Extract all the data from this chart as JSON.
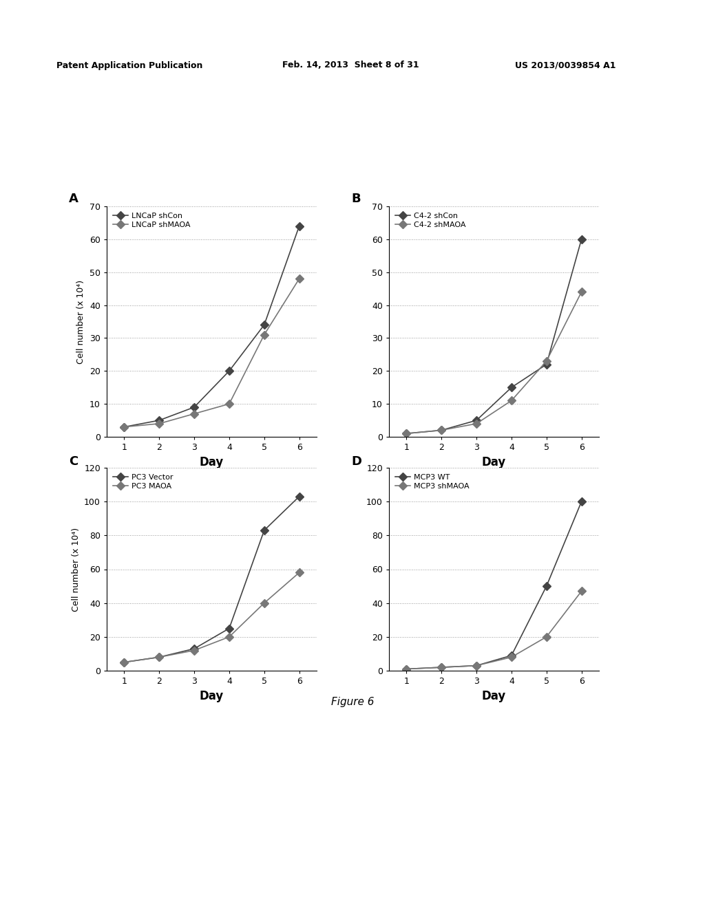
{
  "figure_title": "Figure 6",
  "header_line1": "Patent Application Publication",
  "header_line2": "Feb. 14, 2013  Sheet 8 of 31",
  "header_line3": "US 2013/0039854 A1",
  "subplots": [
    {
      "label": "A",
      "series": [
        {
          "name": "LNCaP shCon",
          "x": [
            1,
            2,
            3,
            4,
            5,
            6
          ],
          "y": [
            3,
            5,
            9,
            20,
            34,
            64
          ]
        },
        {
          "name": "LNCaP shMAOA",
          "x": [
            1,
            2,
            3,
            4,
            5,
            6
          ],
          "y": [
            3,
            4,
            7,
            10,
            31,
            48
          ]
        }
      ],
      "ylabel": "Cell number (x 10⁴)",
      "xlabel": "Day",
      "ylim": [
        0,
        70
      ],
      "yticks": [
        0,
        10,
        20,
        30,
        40,
        50,
        60,
        70
      ],
      "xticks": [
        1,
        2,
        3,
        4,
        5,
        6
      ]
    },
    {
      "label": "B",
      "series": [
        {
          "name": "C4-2 shCon",
          "x": [
            1,
            2,
            3,
            4,
            5,
            6
          ],
          "y": [
            1,
            2,
            5,
            15,
            22,
            60
          ]
        },
        {
          "name": "C4-2 shMAOA",
          "x": [
            1,
            2,
            3,
            4,
            5,
            6
          ],
          "y": [
            1,
            2,
            4,
            11,
            23,
            44
          ]
        }
      ],
      "ylabel": "",
      "xlabel": "Day",
      "ylim": [
        0,
        70
      ],
      "yticks": [
        0,
        10,
        20,
        30,
        40,
        50,
        60,
        70
      ],
      "xticks": [
        1,
        2,
        3,
        4,
        5,
        6
      ]
    },
    {
      "label": "C",
      "series": [
        {
          "name": "PC3 Vector",
          "x": [
            1,
            2,
            3,
            4,
            5,
            6
          ],
          "y": [
            5,
            8,
            13,
            25,
            83,
            103
          ]
        },
        {
          "name": "PC3 MAOA",
          "x": [
            1,
            2,
            3,
            4,
            5,
            6
          ],
          "y": [
            5,
            8,
            12,
            20,
            40,
            58
          ]
        }
      ],
      "ylabel": "Cell number (x 10⁴)",
      "xlabel": "Day",
      "ylim": [
        0,
        120
      ],
      "yticks": [
        0,
        20,
        40,
        60,
        80,
        100,
        120
      ],
      "xticks": [
        1,
        2,
        3,
        4,
        5,
        6
      ]
    },
    {
      "label": "D",
      "series": [
        {
          "name": "MCP3 WT",
          "x": [
            1,
            2,
            3,
            4,
            5,
            6
          ],
          "y": [
            1,
            2,
            3,
            9,
            50,
            100
          ]
        },
        {
          "name": "MCP3 shMAOA",
          "x": [
            1,
            2,
            3,
            4,
            5,
            6
          ],
          "y": [
            1,
            2,
            3,
            8,
            20,
            47
          ]
        }
      ],
      "ylabel": "",
      "xlabel": "Day",
      "ylim": [
        0,
        120
      ],
      "yticks": [
        0,
        20,
        40,
        60,
        80,
        100,
        120
      ],
      "xticks": [
        1,
        2,
        3,
        4,
        5,
        6
      ]
    }
  ],
  "line_color_1": "#444444",
  "line_color_2": "#777777",
  "marker_size": 6,
  "grid_style": ":",
  "grid_color": "#999999",
  "background_color": "#ffffff",
  "font_color": "#000000",
  "ylabel_fontsize": 9,
  "xlabel_fontsize": 12,
  "tick_fontsize": 9,
  "legend_fontsize": 8,
  "panel_label_fontsize": 13,
  "figure_title_fontsize": 11
}
